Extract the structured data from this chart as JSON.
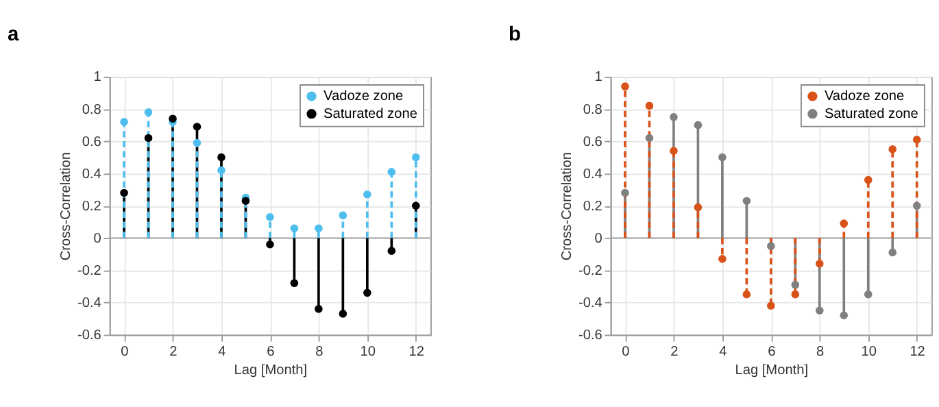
{
  "chart_data": [
    {
      "type": "lollipop",
      "title": "a",
      "xlabel": "Lag [Month]",
      "ylabel": "Cross-Correlation",
      "x": [
        0,
        1,
        2,
        3,
        4,
        5,
        6,
        7,
        8,
        9,
        10,
        11,
        12
      ],
      "series": [
        {
          "name": "Vadoze zone",
          "color": "#4dbeee",
          "line_style": "dashed",
          "values": [
            0.72,
            0.78,
            0.72,
            0.59,
            0.42,
            0.25,
            0.13,
            0.06,
            0.06,
            0.14,
            0.27,
            0.41,
            0.5
          ]
        },
        {
          "name": "Saturated zone",
          "color": "#000000",
          "line_style": "solid",
          "values": [
            0.28,
            0.62,
            0.74,
            0.69,
            0.5,
            0.23,
            -0.04,
            -0.28,
            -0.44,
            -0.47,
            -0.34,
            -0.08,
            0.2
          ]
        }
      ],
      "xlim": [
        -0.6,
        12.6
      ],
      "xticks": [
        0,
        2,
        4,
        6,
        8,
        10,
        12
      ],
      "ylim": [
        -0.6,
        1
      ],
      "yticks": [
        -0.6,
        -0.4,
        -0.2,
        0,
        0.2,
        0.4,
        0.6,
        0.8,
        1
      ],
      "grid": true,
      "legend": "top right",
      "marker": "circle"
    },
    {
      "type": "lollipop",
      "title": "b",
      "xlabel": "Lag [Month]",
      "ylabel": "Cross-Correlation",
      "x": [
        0,
        1,
        2,
        3,
        4,
        5,
        6,
        7,
        8,
        9,
        10,
        11,
        12
      ],
      "series": [
        {
          "name": "Vadoze zone",
          "color": "#d95319",
          "line_style": "dashed",
          "values": [
            0.94,
            0.82,
            0.54,
            0.19,
            -0.13,
            -0.35,
            -0.42,
            -0.35,
            -0.16,
            0.09,
            0.36,
            0.55,
            0.61
          ]
        },
        {
          "name": "Saturated zone",
          "color": "#808080",
          "line_style": "solid",
          "values": [
            0.28,
            0.62,
            0.75,
            0.7,
            0.5,
            0.23,
            -0.05,
            -0.29,
            -0.45,
            -0.48,
            -0.35,
            -0.09,
            0.2
          ]
        }
      ],
      "xlim": [
        -0.6,
        12.6
      ],
      "xticks": [
        0,
        2,
        4,
        6,
        8,
        10,
        12
      ],
      "ylim": [
        -0.6,
        1
      ],
      "yticks": [
        -0.6,
        -0.4,
        -0.2,
        0,
        0.2,
        0.4,
        0.6,
        0.8,
        1
      ],
      "grid": true,
      "legend": "top right",
      "marker": "circle"
    }
  ]
}
